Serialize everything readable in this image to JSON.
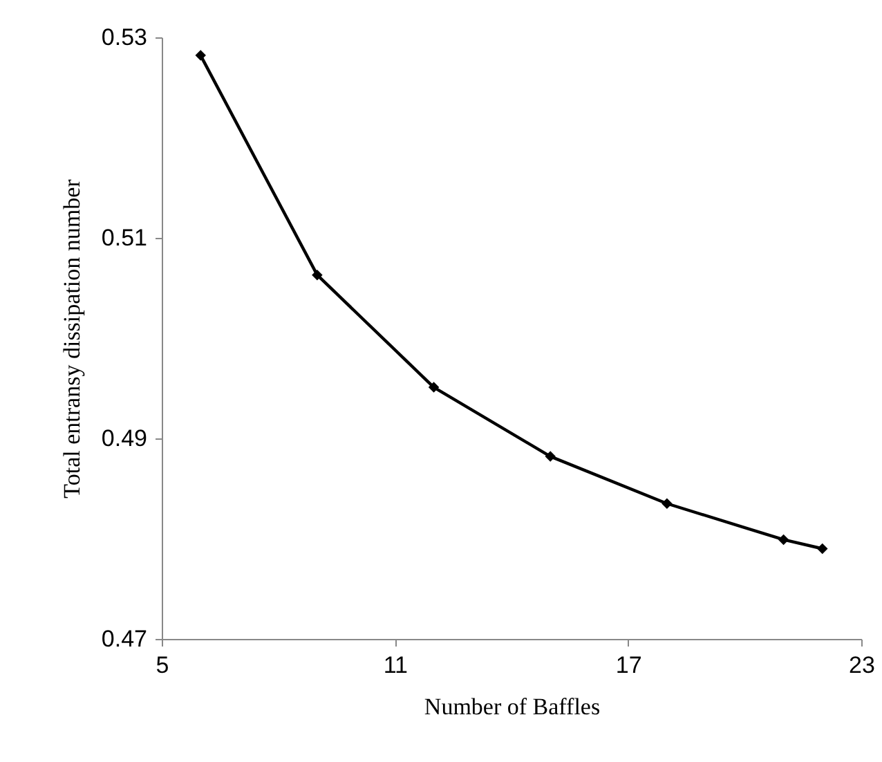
{
  "chart_data": {
    "type": "line",
    "xlabel": "Number of Baffles",
    "ylabel": "Total entransy dissipation number",
    "x": [
      6,
      9,
      12,
      15,
      18,
      21,
      22
    ],
    "series": [
      {
        "color": "#000000",
        "values": [
          0.5282,
          0.5063,
          0.4951,
          0.4882,
          0.4835,
          0.4799,
          0.479
        ]
      }
    ],
    "xlim": [
      5,
      23
    ],
    "xticks": [
      5,
      11,
      17,
      23
    ],
    "ylim": [
      0.47,
      0.53
    ],
    "yticks": [
      0.47,
      0.49,
      0.51,
      0.53
    ],
    "grid": false,
    "legend": false,
    "marker": "diamond",
    "line_style": "solid"
  }
}
